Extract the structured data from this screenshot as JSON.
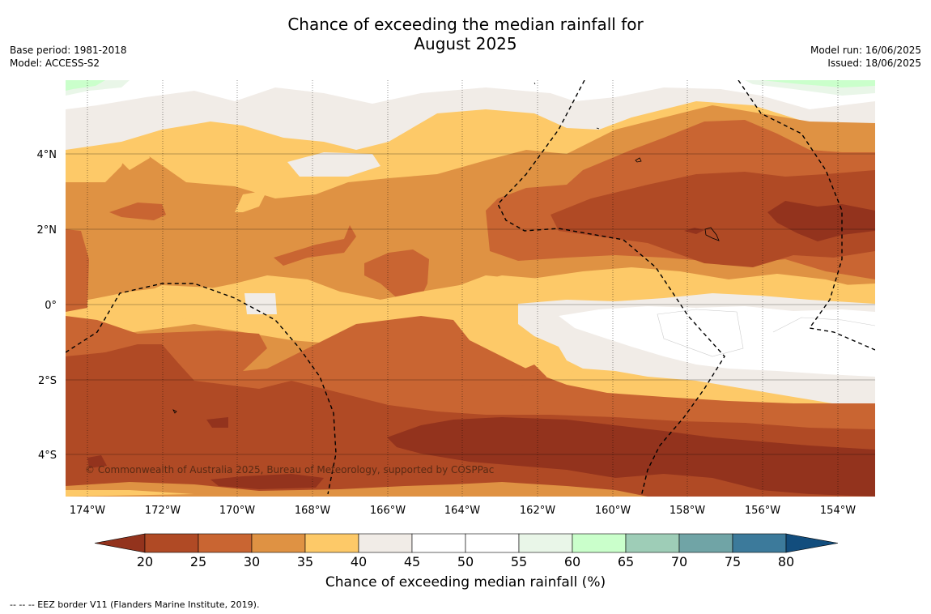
{
  "header": {
    "title_line1": "Chance of exceeding the median rainfall for",
    "title_line2": "August 2025",
    "base_period": "Base period: 1981-2018",
    "model": "Model: ACCESS-S2",
    "model_run": "Model run: 16/06/2025",
    "issued": "Issued: 18/06/2025"
  },
  "map": {
    "lat_labels": [
      "4°N",
      "2°N",
      "0°",
      "2°S",
      "4°S"
    ],
    "lon_labels": [
      "174°W",
      "172°W",
      "170°W",
      "168°W",
      "166°W",
      "164°W",
      "162°W",
      "160°W",
      "158°W",
      "156°W",
      "154°W"
    ],
    "copyright": "© Commonwealth of Australia 2025, Bureau of Meteorology, supported by COSPPac"
  },
  "colorbar": {
    "ticks": [
      "20",
      "25",
      "30",
      "35",
      "40",
      "45",
      "50",
      "55",
      "60",
      "65",
      "70",
      "75",
      "80"
    ],
    "label": "Chance of exceeding median rainfall (%)",
    "colors": [
      "#93331d",
      "#b04a25",
      "#c96532",
      "#df9243",
      "#fdc968",
      "#f1ece7",
      "#ffffff",
      "#ffffff",
      "#e9f6e8",
      "#caffcb",
      "#9ecdb7",
      "#70a4a6",
      "#3c7a9b",
      "#124d7d"
    ]
  },
  "footnote": "--  --  -- EEZ border V11 (Flanders Marine Institute, 2019)."
}
